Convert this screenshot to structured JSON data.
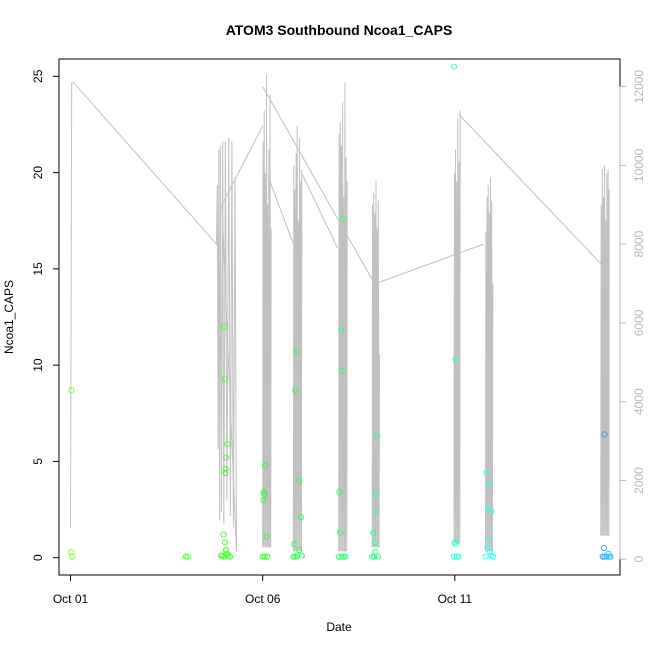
{
  "chart_data": {
    "type": "scatter",
    "title": "ATOM3 Southbound Ncoa1_CAPS",
    "xlabel": "Date",
    "ylabel": "Ncoa1_CAPS",
    "x_unit": "days from Oct 01",
    "x_ticks": [
      {
        "value": 0,
        "label": "Oct 01"
      },
      {
        "value": 5,
        "label": "Oct 06"
      },
      {
        "value": 10,
        "label": "Oct 11"
      }
    ],
    "xlim": [
      -0.3,
      14.3
    ],
    "ylim": [
      -0.9,
      25.9
    ],
    "y_ticks": [
      0,
      5,
      10,
      15,
      20,
      25
    ],
    "y2lim": [
      -400,
      12700
    ],
    "y2_ticks": [
      0,
      2000,
      4000,
      6000,
      8000,
      10000,
      12000
    ],
    "y2_color": "#b8b8b8",
    "grid": false,
    "legend": "none",
    "colors": {
      "line": "#c0c0c0",
      "text": "#000000",
      "frame": "#000000"
    },
    "points": [
      {
        "x": 0.02,
        "y": 8.7,
        "color": "#7FFF33"
      },
      {
        "x": 0.02,
        "y": 0.3,
        "color": "#7FFF33"
      },
      {
        "x": 0.04,
        "y": 0.05,
        "color": "#7FFF33"
      },
      {
        "x": 3.0,
        "y": 0.05,
        "color": "#5CFF33"
      },
      {
        "x": 3.05,
        "y": 0.05,
        "color": "#5CFF33"
      },
      {
        "x": 3.95,
        "y": 0.1,
        "color": "#4CFF33"
      },
      {
        "x": 3.98,
        "y": 1.2,
        "color": "#4CFF33"
      },
      {
        "x": 4.0,
        "y": 12.0,
        "color": "#4CFF33"
      },
      {
        "x": 4.02,
        "y": 9.3,
        "color": "#4CFF33"
      },
      {
        "x": 4.05,
        "y": 5.2,
        "color": "#4CFF33"
      },
      {
        "x": 4.08,
        "y": 5.9,
        "color": "#4CFF33"
      },
      {
        "x": 4.04,
        "y": 4.6,
        "color": "#4CFF33"
      },
      {
        "x": 4.03,
        "y": 4.4,
        "color": "#4CFF33"
      },
      {
        "x": 4.02,
        "y": 0.8,
        "color": "#4CFF33"
      },
      {
        "x": 4.05,
        "y": 0.4,
        "color": "#4CFF33"
      },
      {
        "x": 4.08,
        "y": 0.2,
        "color": "#4CFF33"
      },
      {
        "x": 4.1,
        "y": 0.1,
        "color": "#4CFF33"
      },
      {
        "x": 4.15,
        "y": 0.05,
        "color": "#4CFF33"
      },
      {
        "x": 4.0,
        "y": 0.05,
        "color": "#4CFF33"
      },
      {
        "x": 3.92,
        "y": 0.1,
        "color": "#4CFF33"
      },
      {
        "x": 5.0,
        "y": 0.05,
        "color": "#33FF40"
      },
      {
        "x": 5.05,
        "y": 0.05,
        "color": "#33FF40"
      },
      {
        "x": 5.02,
        "y": 3.0,
        "color": "#33FF40"
      },
      {
        "x": 5.03,
        "y": 3.4,
        "color": "#33FF40"
      },
      {
        "x": 5.05,
        "y": 3.3,
        "color": "#33FF40"
      },
      {
        "x": 5.07,
        "y": 4.8,
        "color": "#33FF40"
      },
      {
        "x": 5.1,
        "y": 1.1,
        "color": "#33FF40"
      },
      {
        "x": 5.12,
        "y": 0.05,
        "color": "#33FF40"
      },
      {
        "x": 5.8,
        "y": 0.05,
        "color": "#33FF55"
      },
      {
        "x": 5.85,
        "y": 0.05,
        "color": "#33FF55"
      },
      {
        "x": 5.82,
        "y": 0.7,
        "color": "#33FF55"
      },
      {
        "x": 5.85,
        "y": 8.7,
        "color": "#33FF55"
      },
      {
        "x": 5.9,
        "y": 10.7,
        "color": "#33FF55"
      },
      {
        "x": 5.95,
        "y": 4.0,
        "color": "#33FF55"
      },
      {
        "x": 5.95,
        "y": 0.4,
        "color": "#33FF55"
      },
      {
        "x": 6.0,
        "y": 2.1,
        "color": "#33FF55"
      },
      {
        "x": 6.02,
        "y": 0.1,
        "color": "#33FF55"
      },
      {
        "x": 5.9,
        "y": 0.1,
        "color": "#33FF55"
      },
      {
        "x": 6.98,
        "y": 0.05,
        "color": "#33FF77"
      },
      {
        "x": 7.0,
        "y": 3.4,
        "color": "#33FF77"
      },
      {
        "x": 7.02,
        "y": 1.3,
        "color": "#33FF77"
      },
      {
        "x": 7.05,
        "y": 11.8,
        "color": "#33FF77"
      },
      {
        "x": 7.06,
        "y": 9.7,
        "color": "#33FF77"
      },
      {
        "x": 7.08,
        "y": 17.6,
        "color": "#33FF77"
      },
      {
        "x": 7.1,
        "y": 0.05,
        "color": "#33FF77"
      },
      {
        "x": 7.15,
        "y": 0.05,
        "color": "#33FF77"
      },
      {
        "x": 7.05,
        "y": 0.05,
        "color": "#33FF77"
      },
      {
        "x": 7.85,
        "y": 0.05,
        "color": "#33FF8C"
      },
      {
        "x": 7.88,
        "y": 1.3,
        "color": "#33FF8C"
      },
      {
        "x": 7.9,
        "y": 0.05,
        "color": "#33FF8C"
      },
      {
        "x": 7.92,
        "y": 0.8,
        "color": "#33FF8C"
      },
      {
        "x": 7.93,
        "y": 0.3,
        "color": "#33FF8C"
      },
      {
        "x": 7.94,
        "y": 3.3,
        "color": "#33FF8C"
      },
      {
        "x": 7.96,
        "y": 2.4,
        "color": "#33FF8C"
      },
      {
        "x": 7.98,
        "y": 6.3,
        "color": "#33FF8C"
      },
      {
        "x": 8.0,
        "y": 0.05,
        "color": "#33FF8C"
      },
      {
        "x": 9.98,
        "y": 25.5,
        "color": "#33FFDD"
      },
      {
        "x": 10.02,
        "y": 10.3,
        "color": "#33FFDD"
      },
      {
        "x": 10.0,
        "y": 0.8,
        "color": "#33FFDD"
      },
      {
        "x": 10.03,
        "y": 0.7,
        "color": "#33FFDD"
      },
      {
        "x": 9.98,
        "y": 0.05,
        "color": "#33FFDD"
      },
      {
        "x": 10.05,
        "y": 0.05,
        "color": "#33FFDD"
      },
      {
        "x": 10.1,
        "y": 0.05,
        "color": "#33FFDD"
      },
      {
        "x": 10.8,
        "y": 0.05,
        "color": "#33FFEE"
      },
      {
        "x": 10.82,
        "y": 4.4,
        "color": "#33FFEE"
      },
      {
        "x": 10.85,
        "y": 0.5,
        "color": "#33FFEE"
      },
      {
        "x": 10.88,
        "y": 2.5,
        "color": "#33FFEE"
      },
      {
        "x": 10.9,
        "y": 3.8,
        "color": "#33FFEE"
      },
      {
        "x": 10.9,
        "y": 1.0,
        "color": "#33FFEE"
      },
      {
        "x": 10.92,
        "y": 0.3,
        "color": "#33FFEE"
      },
      {
        "x": 10.95,
        "y": 2.4,
        "color": "#33FFEE"
      },
      {
        "x": 10.95,
        "y": 0.1,
        "color": "#33FFEE"
      },
      {
        "x": 11.0,
        "y": 0.05,
        "color": "#33FFEE"
      },
      {
        "x": 13.9,
        "y": 6.4,
        "color": "#339CFF"
      },
      {
        "x": 13.88,
        "y": 0.5,
        "color": "#33A8FF"
      },
      {
        "x": 13.85,
        "y": 0.05,
        "color": "#33A8FF"
      },
      {
        "x": 13.9,
        "y": 0.05,
        "color": "#33AEFF"
      },
      {
        "x": 13.95,
        "y": 0.05,
        "color": "#33B8FF"
      },
      {
        "x": 14.0,
        "y": 0.2,
        "color": "#33C4FF"
      },
      {
        "x": 14.02,
        "y": 0.05,
        "color": "#33C8FF"
      },
      {
        "x": 14.05,
        "y": 0.05,
        "color": "#33CCFF"
      }
    ],
    "secondary_series": {
      "x": [
        0.0,
        0.03,
        0.08,
        3.8,
        3.82,
        3.84,
        3.86,
        3.88,
        3.9,
        3.93,
        3.96,
        3.99,
        4.03,
        4.07,
        4.12,
        4.16,
        4.2,
        4.24,
        4.28,
        4.32
      ],
      "y2": [
        800,
        12100,
        12100,
        8000,
        9500,
        2800,
        10400,
        1000,
        10500,
        1200,
        10600,
        900,
        10600,
        1500,
        10700,
        1100,
        10600,
        800,
        9700,
        200
      ]
    },
    "gray_envelope_note": "Connecting gray line of hourly counts on right axis."
  }
}
